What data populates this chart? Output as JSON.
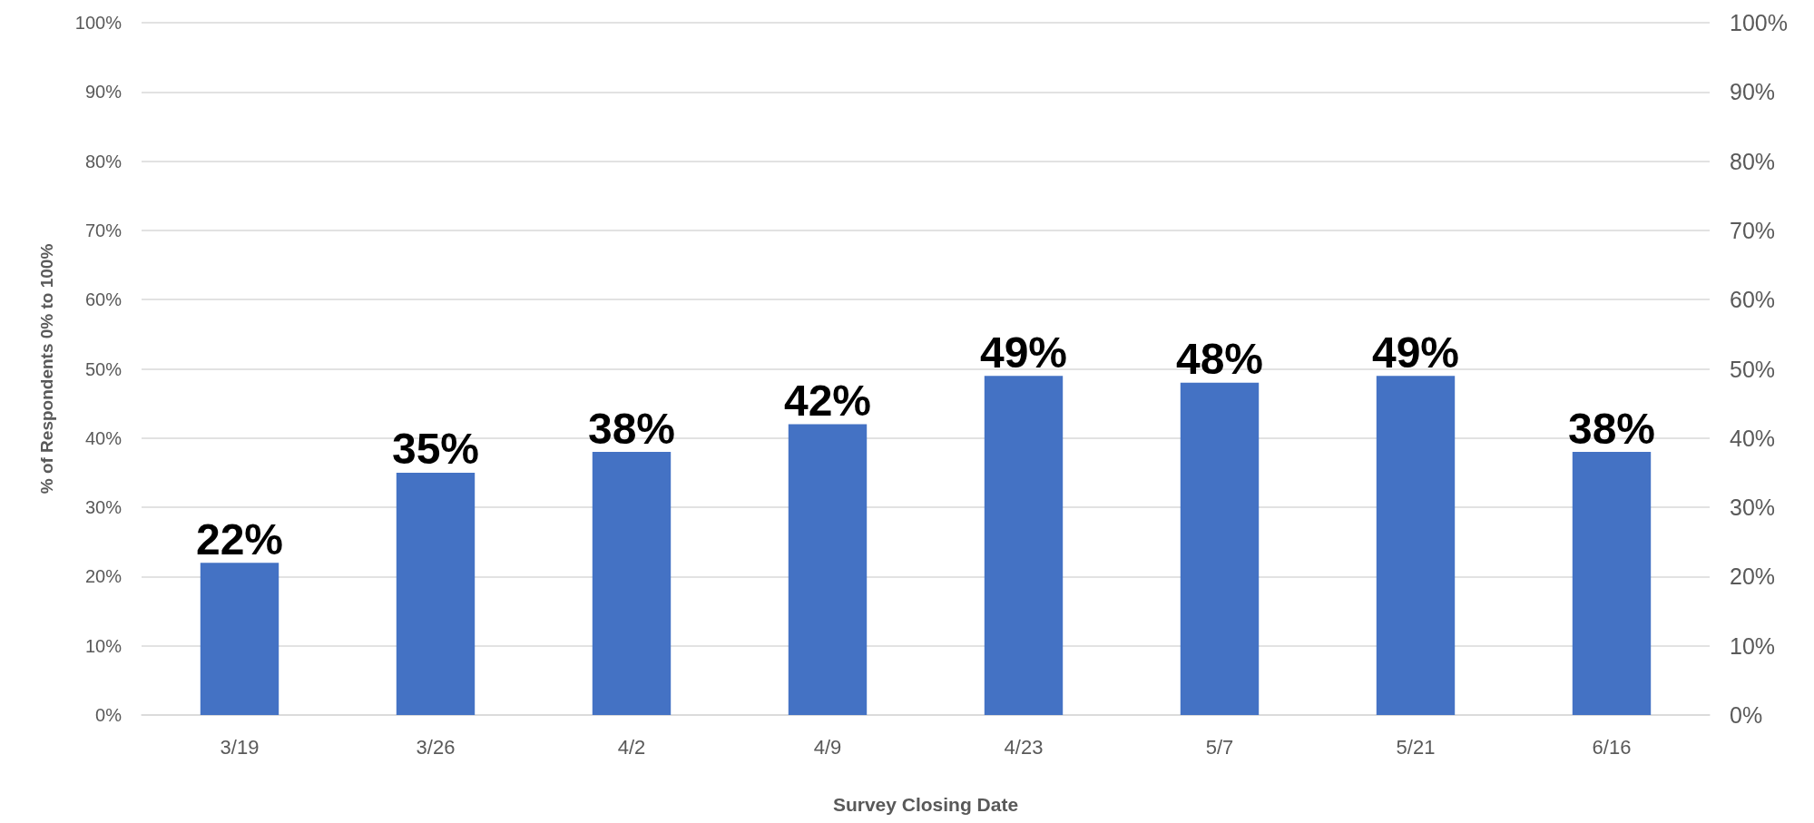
{
  "chart_data": {
    "type": "bar",
    "xlabel": "Survey Closing Date",
    "ylabel": "% of Respondents 0% to 100%",
    "categories": [
      "3/19",
      "3/26",
      "4/2",
      "4/9",
      "4/23",
      "5/7",
      "5/21",
      "6/16"
    ],
    "values": [
      22,
      35,
      38,
      42,
      49,
      48,
      49,
      38
    ],
    "value_labels": [
      "22%",
      "35%",
      "38%",
      "42%",
      "49%",
      "48%",
      "49%",
      "38%"
    ],
    "color": "#4472c4",
    "ylim": [
      0,
      100
    ],
    "yticks": [
      {
        "value": 0,
        "label": "0%"
      },
      {
        "value": 10,
        "label": "10%"
      },
      {
        "value": 20,
        "label": "20%"
      },
      {
        "value": 30,
        "label": "30%"
      },
      {
        "value": 40,
        "label": "40%"
      },
      {
        "value": 50,
        "label": "50%"
      },
      {
        "value": 60,
        "label": "60%"
      },
      {
        "value": 70,
        "label": "70%"
      },
      {
        "value": 80,
        "label": "80%"
      },
      {
        "value": 90,
        "label": "90%"
      },
      {
        "value": 100,
        "label": "100%"
      }
    ],
    "y2lim": [
      0,
      100
    ],
    "y2ticks": [
      {
        "value": 0,
        "label": "0%"
      },
      {
        "value": 10,
        "label": "10%"
      },
      {
        "value": 20,
        "label": "20%"
      },
      {
        "value": 30,
        "label": "30%"
      },
      {
        "value": 40,
        "label": "40%"
      },
      {
        "value": 50,
        "label": "50%"
      },
      {
        "value": 60,
        "label": "60%"
      },
      {
        "value": 70,
        "label": "70%"
      },
      {
        "value": 80,
        "label": "80%"
      },
      {
        "value": 90,
        "label": "90%"
      },
      {
        "value": 100,
        "label": "100%"
      }
    ],
    "grid": "y"
  }
}
